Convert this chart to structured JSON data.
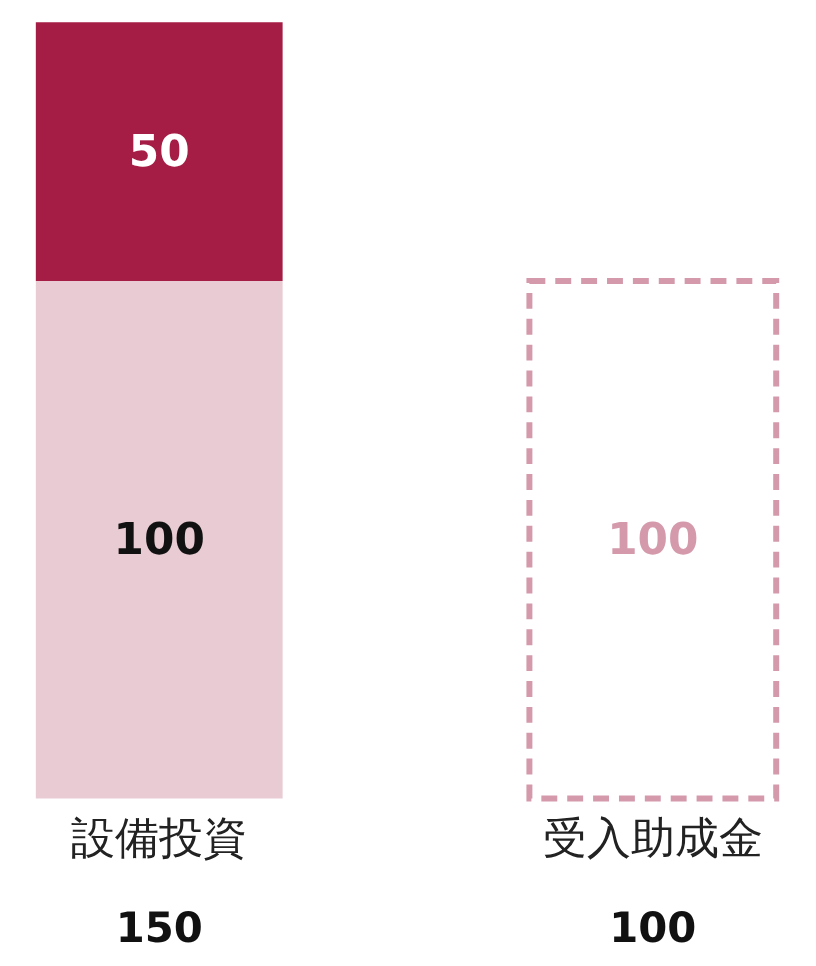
{
  "chart_data": {
    "type": "bar",
    "stacked": true,
    "categories": [
      "設備投資",
      "受入助成金"
    ],
    "ylim": [
      0,
      150
    ],
    "data_labels": true,
    "totals": [
      "150",
      "100"
    ],
    "grid": false,
    "series": [
      {
        "color": "#e8cbd3",
        "values": [
          100,
          null
        ]
      },
      {
        "color": "#a51c45",
        "values": [
          50,
          null
        ]
      },
      {
        "color": "#d49aac",
        "values": [
          null,
          100
        ],
        "line_style": "dashed"
      }
    ]
  }
}
